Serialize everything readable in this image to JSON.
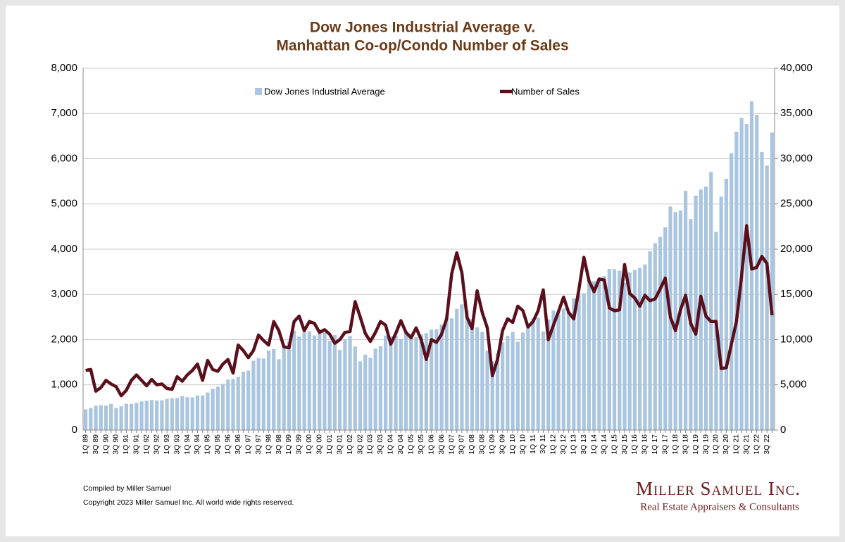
{
  "chart_data": {
    "type": "bar",
    "title": "Dow Jones Industrial Average v.",
    "subtitle": "Manhattan Co-op/Condo Number of Sales",
    "categories": [
      "1Q 89",
      null,
      "3Q 89",
      null,
      "1Q 90",
      null,
      "3Q 90",
      null,
      "1Q 91",
      null,
      "3Q 91",
      null,
      "1Q 92",
      null,
      "3Q 92",
      null,
      "1Q 93",
      null,
      "3Q 93",
      null,
      "1Q 94",
      null,
      "3Q 94",
      null,
      "1Q 95",
      null,
      "3Q 95",
      null,
      "1Q 96",
      null,
      "3Q 96",
      null,
      "1Q 97",
      null,
      "3Q 97",
      null,
      "1Q 98",
      null,
      "3Q 98",
      null,
      "1Q 99",
      null,
      "3Q 99",
      null,
      "1Q 00",
      null,
      "3Q 00",
      null,
      "1Q 01",
      null,
      "3Q 01",
      null,
      "1Q 02",
      null,
      "3Q 02",
      null,
      "1Q 03",
      null,
      "3Q 03",
      null,
      "1Q 04",
      null,
      "3Q 04",
      null,
      "1Q 05",
      null,
      "3Q 05",
      null,
      "1Q 06",
      null,
      "3Q 06",
      null,
      "1Q 07",
      null,
      "3Q 07",
      null,
      "1Q 08",
      null,
      "3Q 08",
      null,
      "1Q 09",
      null,
      "3Q 09",
      null,
      "1Q 10",
      null,
      "3Q 10",
      null,
      "1Q 11",
      null,
      "3Q 11",
      null,
      "1Q 12",
      null,
      "3Q 12",
      null,
      "1Q 13",
      null,
      "3Q 13",
      null,
      "1Q 14",
      null,
      "3Q 14",
      null,
      "1Q 15",
      null,
      "3Q 15",
      null,
      "1Q 16",
      null,
      "3Q 16",
      null,
      "1Q 17",
      null,
      "3Q 17",
      null,
      "1Q 18",
      null,
      "3Q 18",
      null,
      "1Q 19",
      null,
      "3Q 19",
      null,
      "1Q 20",
      null,
      "3Q 20",
      null,
      "1Q 21",
      null,
      "3Q 21",
      null,
      "1Q 22",
      null,
      "3Q 22",
      null
    ],
    "series": [
      {
        "name": "Dow Jones Industrial Average",
        "type": "bar",
        "axis": "y2",
        "color": "#a9c5df",
        "values": [
          2290,
          2440,
          2690,
          2750,
          2700,
          2880,
          2450,
          2630,
          2910,
          2900,
          3010,
          3170,
          3240,
          3320,
          3270,
          3300,
          3440,
          3520,
          3550,
          3750,
          3640,
          3620,
          3840,
          3830,
          4160,
          4560,
          4790,
          5120,
          5590,
          5650,
          5880,
          6450,
          6580,
          7670,
          7950,
          7910,
          8800,
          8950,
          7840,
          9180,
          9790,
          10970,
          10340,
          11500,
          10920,
          10450,
          10650,
          10790,
          9880,
          10500,
          8850,
          10020,
          10400,
          9240,
          7590,
          8340,
          7990,
          8990,
          9280,
          10450,
          10360,
          10440,
          10080,
          10780,
          10500,
          10270,
          10570,
          10720,
          11110,
          11150,
          11680,
          12460,
          12350,
          13410,
          13900,
          13260,
          12260,
          11350,
          10850,
          8780,
          7610,
          8450,
          9710,
          10430,
          10860,
          9770,
          10790,
          11580,
          12320,
          12410,
          10910,
          12220,
          13210,
          12880,
          13440,
          13100,
          14580,
          14910,
          15130,
          16580,
          16460,
          16830,
          17040,
          17820,
          17780,
          17620,
          16280,
          17430,
          17690,
          17930,
          18310,
          19760,
          20660,
          21350,
          22410,
          24720,
          24100,
          24270,
          26460,
          23330,
          25930,
          26600,
          26920,
          28540,
          21920,
          25810,
          27780,
          30610,
          32980,
          34500,
          33840,
          36340,
          34850,
          30750,
          29250,
          32900
        ]
      },
      {
        "name": "Number of Sales",
        "type": "line",
        "axis": "y",
        "color": "#5a0f1c",
        "values": [
          1320,
          1340,
          860,
          940,
          1100,
          1020,
          960,
          760,
          880,
          1100,
          1220,
          1100,
          980,
          1120,
          1000,
          1020,
          920,
          900,
          1180,
          1080,
          1220,
          1320,
          1460,
          1100,
          1540,
          1340,
          1300,
          1460,
          1560,
          1260,
          1880,
          1760,
          1600,
          1760,
          2100,
          1980,
          1880,
          2400,
          2200,
          1840,
          1820,
          2400,
          2520,
          2200,
          2400,
          2360,
          2160,
          2220,
          2120,
          1920,
          2000,
          2160,
          2180,
          2840,
          2500,
          2140,
          1960,
          2160,
          2400,
          2320,
          1900,
          2140,
          2420,
          2160,
          2040,
          2260,
          2000,
          1560,
          2000,
          1940,
          2120,
          2460,
          3460,
          3920,
          3480,
          2500,
          2240,
          3080,
          2600,
          2260,
          1200,
          1560,
          2200,
          2460,
          2380,
          2740,
          2640,
          2280,
          2400,
          2640,
          3100,
          2000,
          2320,
          2620,
          2940,
          2600,
          2460,
          3100,
          3820,
          3300,
          3060,
          3340,
          3320,
          2700,
          2640,
          2660,
          3660,
          3020,
          2920,
          2740,
          2980,
          2860,
          2900,
          3120,
          3360,
          2500,
          2200,
          2660,
          2980,
          2360,
          2120,
          2960,
          2520,
          2400,
          2400,
          1360,
          1380,
          1900,
          2400,
          3400,
          4520,
          3560,
          3600,
          3840,
          3680,
          2540
        ]
      }
    ],
    "ylim": [
      0,
      8000
    ],
    "yticks": [
      0,
      {
        "value": 1000,
        "label": "1,000"
      },
      {
        "value": 2000,
        "label": "2,000"
      },
      {
        "value": 3000,
        "label": "3,000"
      },
      {
        "value": 4000,
        "label": "4,000"
      },
      {
        "value": 5000,
        "label": "5,000"
      },
      {
        "value": 6000,
        "label": "6,000"
      },
      {
        "value": 7000,
        "label": "7,000"
      },
      {
        "value": 8000,
        "label": "8,000"
      }
    ],
    "y2lim": [
      0,
      40000
    ],
    "y2ticks": [
      0,
      {
        "value": 5000,
        "label": "5,000"
      },
      {
        "value": 10000,
        "label": "10,000"
      },
      {
        "value": 15000,
        "label": "15,000"
      },
      {
        "value": 20000,
        "label": "20,000"
      },
      {
        "value": 25000,
        "label": "25,000"
      },
      {
        "value": 30000,
        "label": "30,000"
      },
      {
        "value": 35000,
        "label": "35,000"
      },
      {
        "value": 40000,
        "label": "40,000"
      }
    ],
    "grid": true,
    "legend": "top",
    "notes": [
      "Compiled by Miller Samuel",
      "Copyright 2023 Miller Samuel Inc.  All world wide rights reserved."
    ],
    "brand": {
      "name": "Miller Samuel Inc.",
      "tagline": "Real Estate Appraisers & Consultants"
    }
  }
}
